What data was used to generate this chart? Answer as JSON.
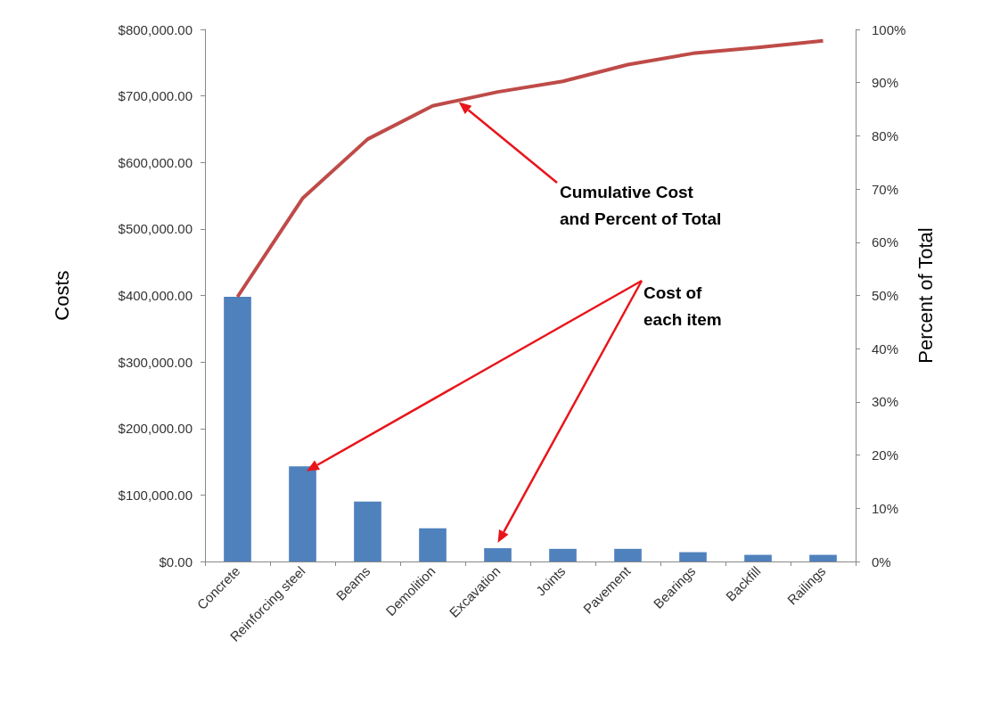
{
  "chart_data": {
    "type": "bar",
    "categories": [
      "Concrete",
      "Reinforcing steel",
      "Beams",
      "Demolition",
      "Excavation",
      "Joints",
      "Pavement",
      "Bearings",
      "Backfill",
      "Railings"
    ],
    "series": [
      {
        "color": "#4f81bd",
        "values": [
          398000,
          143000,
          90000,
          50000,
          20000,
          19000,
          19000,
          14000,
          10000,
          10000
        ]
      },
      {
        "type": "line",
        "color": "#be4b48",
        "marker": "none",
        "values": [
          398000,
          546000,
          635000,
          685000,
          706000,
          722000,
          747000,
          764000,
          773000,
          783000
        ]
      }
    ],
    "ylabel": "Costs",
    "y2label": "Percent of Total",
    "ylim": [
      0,
      800000
    ],
    "yticks": [
      {
        "value": 0,
        "label": "$0.00"
      },
      {
        "value": 100000,
        "label": "$100,000.00"
      },
      {
        "value": 200000,
        "label": "$200,000.00"
      },
      {
        "value": 300000,
        "label": "$300,000.00"
      },
      {
        "value": 400000,
        "label": "$400,000.00"
      },
      {
        "value": 500000,
        "label": "$500,000.00"
      },
      {
        "value": 600000,
        "label": "$600,000.00"
      },
      {
        "value": 700000,
        "label": "$700,000.00"
      },
      {
        "value": 800000,
        "label": "$800,000.00"
      }
    ],
    "y2lim": [
      0,
      100
    ],
    "y2ticks": [
      {
        "value": 0,
        "label": "0%"
      },
      {
        "value": 10,
        "label": "10%"
      },
      {
        "value": 20,
        "label": "20%"
      },
      {
        "value": 30,
        "label": "30%"
      },
      {
        "value": 40,
        "label": "40%"
      },
      {
        "value": 50,
        "label": "50%"
      },
      {
        "value": 60,
        "label": "60%"
      },
      {
        "value": 70,
        "label": "70%"
      },
      {
        "value": 80,
        "label": "80%"
      },
      {
        "value": 90,
        "label": "90%"
      },
      {
        "value": 100,
        "label": "100%"
      }
    ],
    "annotations": [
      "Cumulative Cost\nand Percent of Total",
      "Cost of\neach item"
    ],
    "grid": false
  }
}
